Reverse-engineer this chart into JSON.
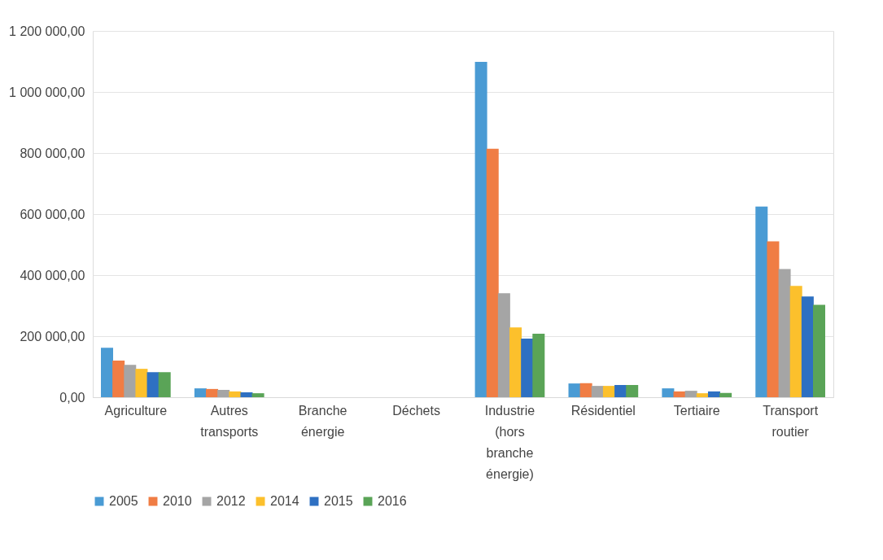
{
  "chart_data": {
    "type": "bar",
    "categories": [
      "Agriculture",
      "Autres transports",
      "Branche énergie",
      "Déchets",
      "Industrie (hors branche énergie)",
      "Résidentiel",
      "Tertiaire",
      "Transport routier"
    ],
    "series": [
      {
        "name": "2005",
        "color": "#4a9bd4",
        "values": [
          162000,
          29000,
          0,
          0,
          1099000,
          45000,
          29000,
          625000
        ]
      },
      {
        "name": "2010",
        "color": "#f07d44",
        "values": [
          120000,
          27000,
          0,
          0,
          814000,
          46000,
          19000,
          511000
        ]
      },
      {
        "name": "2012",
        "color": "#a5a5a5",
        "values": [
          106000,
          24000,
          0,
          0,
          341000,
          37000,
          21000,
          420000
        ]
      },
      {
        "name": "2014",
        "color": "#fcc02c",
        "values": [
          93000,
          19000,
          0,
          0,
          229000,
          37000,
          13000,
          365000
        ]
      },
      {
        "name": "2015",
        "color": "#2e70c2",
        "values": [
          82000,
          16000,
          0,
          0,
          192000,
          40000,
          19000,
          330000
        ]
      },
      {
        "name": "2016",
        "color": "#5aa457",
        "values": [
          82000,
          13000,
          0,
          0,
          208000,
          40000,
          14000,
          303000
        ]
      }
    ],
    "ylim": [
      0,
      1200000
    ],
    "yticks": [
      {
        "value": 0,
        "label": "0,00"
      },
      {
        "value": 200000,
        "label": "200 000,00"
      },
      {
        "value": 400000,
        "label": "400 000,00"
      },
      {
        "value": 600000,
        "label": "600 000,00"
      },
      {
        "value": 800000,
        "label": "800 000,00"
      },
      {
        "value": 1000000,
        "label": "1 000 000,00"
      },
      {
        "value": 1200000,
        "label": "1 200 000,00"
      }
    ],
    "grid": "y",
    "legend": "bottom"
  }
}
